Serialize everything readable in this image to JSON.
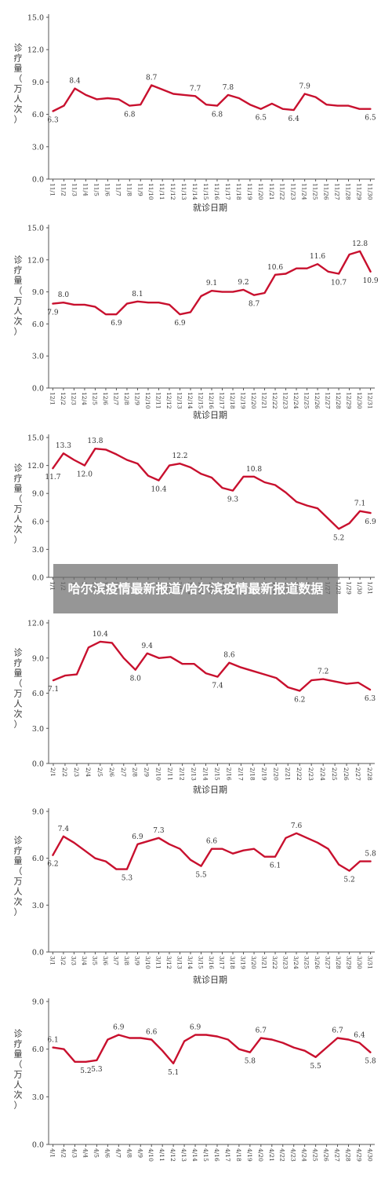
{
  "banner": {
    "title": "哈尔滨疫情最新报道/哈尔滨疫情最新报道数据"
  },
  "chart_data": [
    {
      "type": "line",
      "ylabel": "诊疗量（万人次）",
      "xlabel": "就诊日期",
      "ylim": [
        0,
        15
      ],
      "yticks": [
        "0.0",
        "3.0",
        "6.0",
        "9.0",
        "12.0",
        "15.0"
      ],
      "series_color": "#c8102e",
      "categories": [
        "11/1",
        "11/2",
        "11/3",
        "11/4",
        "11/5",
        "11/6",
        "11/7",
        "11/8",
        "11/9",
        "11/10",
        "11/11",
        "11/12",
        "11/13",
        "11/14",
        "11/15",
        "11/16",
        "11/17",
        "11/18",
        "11/19",
        "11/20",
        "11/21",
        "11/22",
        "11/23",
        "11/24",
        "11/25",
        "11/26",
        "11/27",
        "11/28",
        "11/29",
        "11/30"
      ],
      "values": [
        6.3,
        6.8,
        8.4,
        7.8,
        7.4,
        7.5,
        7.4,
        6.8,
        6.9,
        8.7,
        8.3,
        7.9,
        7.8,
        7.7,
        6.9,
        6.8,
        7.8,
        7.5,
        6.9,
        6.5,
        7.0,
        6.5,
        6.4,
        7.9,
        7.6,
        6.9,
        6.8,
        6.8,
        6.5,
        6.5
      ],
      "data_labels": [
        {
          "i": 0,
          "text": "6.3",
          "pos": "below"
        },
        {
          "i": 2,
          "text": "8.4",
          "pos": "above"
        },
        {
          "i": 7,
          "text": "6.8",
          "pos": "below"
        },
        {
          "i": 9,
          "text": "8.7",
          "pos": "above"
        },
        {
          "i": 13,
          "text": "7.7",
          "pos": "above"
        },
        {
          "i": 15,
          "text": "6.8",
          "pos": "below"
        },
        {
          "i": 16,
          "text": "7.8",
          "pos": "above"
        },
        {
          "i": 19,
          "text": "6.5",
          "pos": "below"
        },
        {
          "i": 22,
          "text": "6.4",
          "pos": "below"
        },
        {
          "i": 23,
          "text": "7.9",
          "pos": "above"
        },
        {
          "i": 29,
          "text": "6.5",
          "pos": "below"
        }
      ]
    },
    {
      "type": "line",
      "ylabel": "诊疗量（万人次）",
      "xlabel": "就诊日期",
      "ylim": [
        0,
        15
      ],
      "yticks": [
        "0.0",
        "3.0",
        "6.0",
        "9.0",
        "12.0",
        "15.0"
      ],
      "series_color": "#c8102e",
      "categories": [
        "12/1",
        "12/2",
        "12/3",
        "12/4",
        "12/5",
        "12/6",
        "12/7",
        "12/8",
        "12/9",
        "12/10",
        "12/11",
        "12/12",
        "12/13",
        "12/14",
        "12/15",
        "12/16",
        "12/17",
        "12/18",
        "12/19",
        "12/20",
        "12/21",
        "12/22",
        "12/23",
        "12/24",
        "12/25",
        "12/26",
        "12/27",
        "12/28",
        "12/29",
        "12/30",
        "12/31"
      ],
      "values": [
        7.9,
        8.0,
        7.8,
        7.8,
        7.6,
        6.9,
        6.9,
        7.9,
        8.1,
        8.0,
        8.0,
        7.8,
        6.9,
        7.1,
        8.6,
        9.1,
        9.0,
        9.0,
        9.2,
        8.7,
        8.9,
        10.6,
        10.7,
        11.2,
        11.2,
        11.6,
        10.9,
        10.7,
        12.5,
        12.8,
        10.9
      ],
      "data_labels": [
        {
          "i": 0,
          "text": "7.9",
          "pos": "below"
        },
        {
          "i": 1,
          "text": "8.0",
          "pos": "above"
        },
        {
          "i": 6,
          "text": "6.9",
          "pos": "below"
        },
        {
          "i": 8,
          "text": "8.1",
          "pos": "above"
        },
        {
          "i": 12,
          "text": "6.9",
          "pos": "below"
        },
        {
          "i": 15,
          "text": "9.1",
          "pos": "above"
        },
        {
          "i": 18,
          "text": "9.2",
          "pos": "above"
        },
        {
          "i": 19,
          "text": "8.7",
          "pos": "below"
        },
        {
          "i": 21,
          "text": "10.6",
          "pos": "above"
        },
        {
          "i": 25,
          "text": "11.6",
          "pos": "above"
        },
        {
          "i": 27,
          "text": "10.7",
          "pos": "below"
        },
        {
          "i": 29,
          "text": "12.8",
          "pos": "above"
        },
        {
          "i": 30,
          "text": "10.9",
          "pos": "below"
        }
      ]
    },
    {
      "type": "line",
      "ylabel": "诊疗量（万人次）",
      "xlabel": "",
      "ylim": [
        0,
        15
      ],
      "yticks": [
        "0.0",
        "3.0",
        "6.0",
        "9.0",
        "12.0",
        "15.0"
      ],
      "series_color": "#c8102e",
      "categories": [
        "1/1",
        "1/2",
        "1/3",
        "1/4",
        "1/5",
        "1/6",
        "1/7",
        "1/8",
        "1/9",
        "1/10",
        "1/11",
        "1/12",
        "1/13",
        "1/14",
        "1/15",
        "1/16",
        "1/17",
        "1/18",
        "1/19",
        "1/20",
        "1/21",
        "1/22",
        "1/23",
        "1/24",
        "1/25",
        "1/26",
        "1/27",
        "1/28",
        "1/29",
        "1/30",
        "1/31"
      ],
      "values": [
        11.7,
        13.3,
        12.6,
        12.0,
        13.8,
        13.7,
        13.2,
        12.6,
        12.2,
        10.9,
        10.4,
        12.0,
        12.2,
        11.8,
        11.1,
        10.7,
        9.6,
        9.3,
        10.8,
        10.8,
        10.2,
        9.9,
        9.1,
        8.1,
        7.7,
        7.4,
        6.3,
        5.2,
        5.8,
        7.1,
        6.9
      ],
      "data_labels": [
        {
          "i": 0,
          "text": "11.7",
          "pos": "below"
        },
        {
          "i": 1,
          "text": "13.3",
          "pos": "above"
        },
        {
          "i": 3,
          "text": "12.0",
          "pos": "below"
        },
        {
          "i": 4,
          "text": "13.8",
          "pos": "above"
        },
        {
          "i": 10,
          "text": "10.4",
          "pos": "below"
        },
        {
          "i": 12,
          "text": "12.2",
          "pos": "above"
        },
        {
          "i": 17,
          "text": "9.3",
          "pos": "below"
        },
        {
          "i": 19,
          "text": "10.8",
          "pos": "above"
        },
        {
          "i": 27,
          "text": "5.2",
          "pos": "below"
        },
        {
          "i": 29,
          "text": "7.1",
          "pos": "above"
        },
        {
          "i": 30,
          "text": "6.9",
          "pos": "below"
        }
      ]
    },
    {
      "type": "line",
      "ylabel": "诊疗量（万人次）",
      "xlabel": "就诊日期",
      "ylim": [
        0,
        12
      ],
      "yticks": [
        "0.0",
        "3.0",
        "6.0",
        "9.0",
        "12.0"
      ],
      "series_color": "#c8102e",
      "categories": [
        "2/1",
        "2/2",
        "2/3",
        "2/4",
        "2/5",
        "2/6",
        "2/7",
        "2/8",
        "2/9",
        "2/10",
        "2/11",
        "2/12",
        "2/13",
        "2/14",
        "2/15",
        "2/16",
        "2/17",
        "2/18",
        "2/19",
        "2/20",
        "2/21",
        "2/22",
        "2/23",
        "2/24",
        "2/25",
        "2/26",
        "2/27",
        "2/28"
      ],
      "values": [
        7.1,
        7.5,
        7.6,
        9.9,
        10.4,
        10.3,
        9.0,
        8.0,
        9.4,
        9.0,
        9.1,
        8.5,
        8.5,
        7.7,
        7.4,
        8.6,
        8.2,
        7.9,
        7.6,
        7.3,
        6.5,
        6.2,
        7.1,
        7.2,
        7.0,
        6.8,
        6.9,
        6.3
      ],
      "data_labels": [
        {
          "i": 0,
          "text": "7.1",
          "pos": "below"
        },
        {
          "i": 4,
          "text": "10.4",
          "pos": "above"
        },
        {
          "i": 7,
          "text": "8.0",
          "pos": "below"
        },
        {
          "i": 8,
          "text": "9.4",
          "pos": "above"
        },
        {
          "i": 14,
          "text": "7.4",
          "pos": "below"
        },
        {
          "i": 15,
          "text": "8.6",
          "pos": "above"
        },
        {
          "i": 21,
          "text": "6.2",
          "pos": "below"
        },
        {
          "i": 23,
          "text": "7.2",
          "pos": "above"
        },
        {
          "i": 27,
          "text": "6.3",
          "pos": "below"
        }
      ]
    },
    {
      "type": "line",
      "ylabel": "诊疗量（万人次）",
      "xlabel": "就诊日期",
      "ylim": [
        0,
        9
      ],
      "yticks": [
        "0.0",
        "3.0",
        "6.0",
        "9.0"
      ],
      "series_color": "#c8102e",
      "categories": [
        "3/1",
        "3/2",
        "3/3",
        "3/4",
        "3/5",
        "3/6",
        "3/7",
        "3/8",
        "3/9",
        "3/10",
        "3/11",
        "3/12",
        "3/13",
        "3/14",
        "3/15",
        "3/16",
        "3/17",
        "3/18",
        "3/19",
        "3/20",
        "3/21",
        "3/22",
        "3/23",
        "3/24",
        "3/25",
        "3/26",
        "3/27",
        "3/28",
        "3/29",
        "3/30",
        "3/31"
      ],
      "values": [
        6.2,
        7.4,
        7.0,
        6.5,
        6.0,
        5.8,
        5.3,
        5.3,
        6.9,
        7.1,
        7.3,
        6.9,
        6.6,
        5.9,
        5.5,
        6.6,
        6.6,
        6.3,
        6.5,
        6.6,
        6.1,
        6.1,
        7.3,
        7.6,
        7.3,
        7.0,
        6.6,
        5.6,
        5.2,
        5.8,
        5.8
      ],
      "data_labels": [
        {
          "i": 0,
          "text": "6.2",
          "pos": "below"
        },
        {
          "i": 1,
          "text": "7.4",
          "pos": "above"
        },
        {
          "i": 7,
          "text": "5.3",
          "pos": "below"
        },
        {
          "i": 8,
          "text": "6.9",
          "pos": "above"
        },
        {
          "i": 10,
          "text": "7.3",
          "pos": "above"
        },
        {
          "i": 14,
          "text": "5.5",
          "pos": "below"
        },
        {
          "i": 15,
          "text": "6.6",
          "pos": "above"
        },
        {
          "i": 21,
          "text": "6.1",
          "pos": "below"
        },
        {
          "i": 23,
          "text": "7.6",
          "pos": "above"
        },
        {
          "i": 28,
          "text": "5.2",
          "pos": "below"
        },
        {
          "i": 30,
          "text": "5.8",
          "pos": "above"
        }
      ]
    },
    {
      "type": "line",
      "ylabel": "诊疗量（万人次）",
      "xlabel": "",
      "ylim": [
        0,
        9
      ],
      "yticks": [
        "0.0",
        "3.0",
        "6.0",
        "9.0"
      ],
      "series_color": "#c8102e",
      "categories": [
        "4/1",
        "4/2",
        "4/3",
        "4/4",
        "4/5",
        "4/6",
        "4/7",
        "4/8",
        "4/9",
        "4/10",
        "4/11",
        "4/12",
        "4/13",
        "4/14",
        "4/15",
        "4/16",
        "4/17",
        "4/18",
        "4/19",
        "4/20",
        "4/21",
        "4/22",
        "4/23",
        "4/24",
        "4/25",
        "4/26",
        "4/27",
        "4/28",
        "4/29",
        "4/30"
      ],
      "values": [
        6.1,
        6.0,
        5.2,
        5.2,
        5.3,
        6.6,
        6.9,
        6.7,
        6.7,
        6.6,
        5.9,
        5.1,
        6.5,
        6.9,
        6.9,
        6.8,
        6.6,
        6.0,
        5.8,
        6.7,
        6.6,
        6.4,
        6.1,
        5.9,
        5.5,
        6.1,
        6.7,
        6.6,
        6.4,
        5.8
      ],
      "data_labels": [
        {
          "i": 0,
          "text": "6.1",
          "pos": "above"
        },
        {
          "i": 3,
          "text": "5.2",
          "pos": "below"
        },
        {
          "i": 4,
          "text": "5.3",
          "pos": "below"
        },
        {
          "i": 6,
          "text": "6.9",
          "pos": "above"
        },
        {
          "i": 9,
          "text": "6.6",
          "pos": "above"
        },
        {
          "i": 11,
          "text": "5.1",
          "pos": "below"
        },
        {
          "i": 13,
          "text": "6.9",
          "pos": "above"
        },
        {
          "i": 18,
          "text": "5.8",
          "pos": "below"
        },
        {
          "i": 19,
          "text": "6.7",
          "pos": "above"
        },
        {
          "i": 24,
          "text": "5.5",
          "pos": "below"
        },
        {
          "i": 26,
          "text": "6.7",
          "pos": "above"
        },
        {
          "i": 28,
          "text": "6.4",
          "pos": "above"
        },
        {
          "i": 29,
          "text": "5.8",
          "pos": "below"
        }
      ]
    }
  ]
}
